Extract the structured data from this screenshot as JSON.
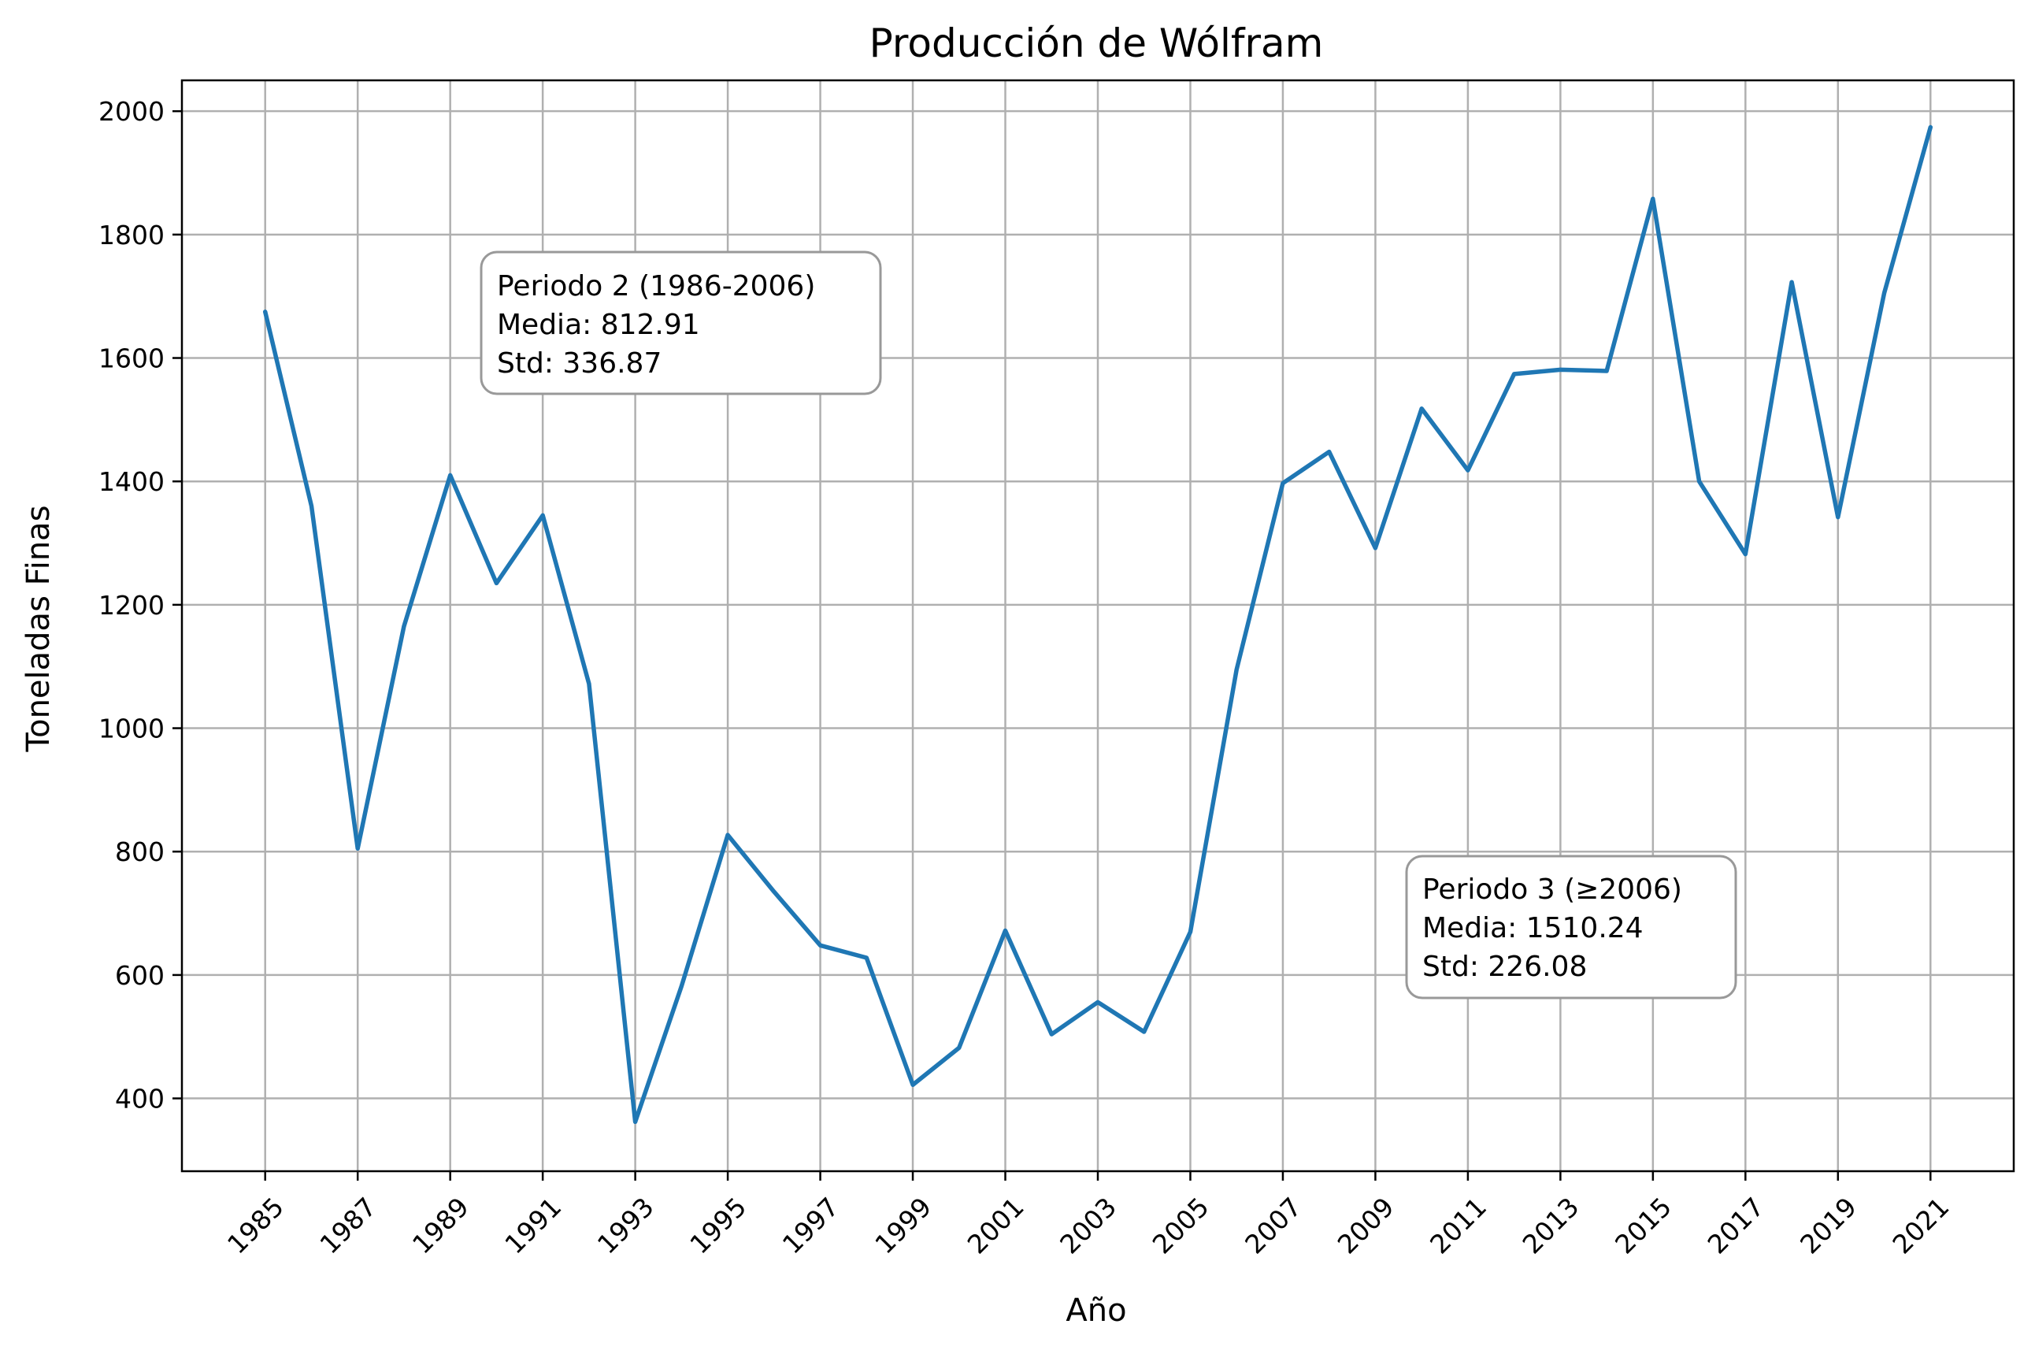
{
  "chart_data": {
    "type": "line",
    "title": "Producción de Wólfram",
    "xlabel": "Año",
    "ylabel": "Toneladas Finas",
    "xlim": [
      1983.2,
      2022.8
    ],
    "ylim": [
      282,
      2050
    ],
    "x_ticks": [
      "1985",
      "1987",
      "1989",
      "1991",
      "1993",
      "1995",
      "1997",
      "1999",
      "2001",
      "2003",
      "2005",
      "2007",
      "2009",
      "2011",
      "2013",
      "2015",
      "2017",
      "2019",
      "2021"
    ],
    "y_ticks": [
      "400",
      "600",
      "800",
      "1000",
      "1200",
      "1400",
      "1600",
      "1800",
      "2000"
    ],
    "grid": true,
    "colors": {
      "series": "#1f77b4"
    },
    "series": [
      {
        "x": [
          1985,
          1986,
          1987,
          1988,
          1989,
          1990,
          1991,
          1992,
          1993,
          1994,
          1995,
          1996,
          1997,
          1998,
          1999,
          2000,
          2001,
          2002,
          2003,
          2004,
          2005,
          2006,
          2007,
          2008,
          2009,
          2010,
          2011,
          2012,
          2013,
          2014,
          2015,
          2016,
          2017,
          2018,
          2019,
          2020,
          2021
        ],
        "y": [
          1675,
          1360,
          805,
          1165,
          1410,
          1235,
          1345,
          1072,
          362,
          582,
          827,
          735,
          648,
          628,
          422,
          482,
          672,
          504,
          556,
          508,
          670,
          1095,
          1397,
          1448,
          1292,
          1518,
          1418,
          1574,
          1581,
          1579,
          1858,
          1400,
          1282,
          1723,
          1342,
          1705,
          1974
        ]
      }
    ],
    "annotations": [
      {
        "lines": [
          "Periodo 2 (1986-2006)",
          "Media: 812.91",
          "Std: 336.87"
        ]
      },
      {
        "lines": [
          "Periodo 3 (≥2006)",
          "Media: 1510.24",
          "Std: 226.08"
        ]
      }
    ]
  }
}
